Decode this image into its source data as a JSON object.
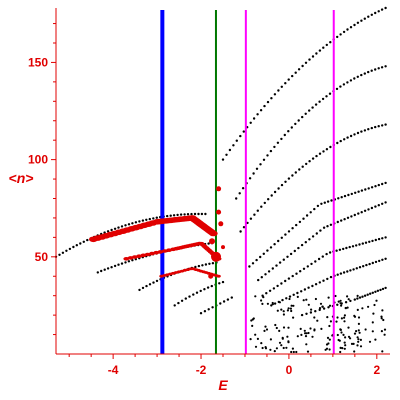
{
  "chart_data": {
    "type": "scatter",
    "title": "",
    "xlabel": "E",
    "ylabel": "<n>",
    "xlim": [
      -5.3,
      2.3
    ],
    "ylim": [
      0,
      178
    ],
    "xticks": [
      {
        "value": -4,
        "label": "-4"
      },
      {
        "value": -2,
        "label": "-2"
      },
      {
        "value": 0,
        "label": "0"
      },
      {
        "value": 2,
        "label": "2"
      }
    ],
    "yticks": [
      {
        "value": 50,
        "label": "50"
      },
      {
        "value": 100,
        "label": "100"
      },
      {
        "value": 150,
        "label": "150"
      }
    ],
    "grid": false,
    "colors": {
      "axis": "#e00000",
      "highlight": "#e00000",
      "points": "#000000",
      "line_blue": "#0000ff",
      "line_green": "#007700",
      "line_magenta": "#ff00ff"
    },
    "vertical_lines": [
      {
        "x": -2.88,
        "color": "#0000ff",
        "width": 4
      },
      {
        "x": -1.66,
        "color": "#007700",
        "width": 2
      },
      {
        "x": -0.98,
        "color": "#ff00ff",
        "width": 2
      },
      {
        "x": 1.02,
        "color": "#ff00ff",
        "width": 2
      }
    ],
    "black_branches": [
      {
        "x": [
          -5.3,
          -1.9
        ],
        "y": [
          50,
          72
        ],
        "curvature": -6
      },
      {
        "x": [
          -4.35,
          -1.75
        ],
        "y": [
          42,
          57
        ],
        "curvature": -2
      },
      {
        "x": [
          -3.4,
          -1.65
        ],
        "y": [
          33,
          47
        ],
        "curvature": -2
      },
      {
        "x": [
          -2.6,
          -1.5
        ],
        "y": [
          25,
          37
        ],
        "curvature": -1
      },
      {
        "x": [
          -2.0,
          -1.3
        ],
        "y": [
          21,
          29
        ],
        "curvature": 0
      },
      {
        "x": [
          -1.5,
          2.2
        ],
        "y": [
          100,
          178
        ],
        "curvature": -10
      },
      {
        "x": [
          -1.2,
          2.2
        ],
        "y": [
          80,
          148
        ],
        "curvature": -12
      },
      {
        "x": [
          -1.1,
          2.2
        ],
        "y": [
          63,
          118
        ],
        "curvature": -10
      },
      {
        "x": [
          -0.9,
          0.7,
          2.2
        ],
        "y": [
          45,
          77,
          88
        ],
        "curvature": 0
      },
      {
        "x": [
          -0.7,
          0.8,
          2.2
        ],
        "y": [
          38,
          65,
          78
        ],
        "curvature": 0
      },
      {
        "x": [
          -0.6,
          0.9,
          2.2
        ],
        "y": [
          30,
          52,
          60
        ],
        "curvature": 0
      },
      {
        "x": [
          -0.4,
          1.0,
          2.2
        ],
        "y": [
          25,
          40,
          49
        ],
        "curvature": 0
      },
      {
        "x": [
          0.3,
          1.5,
          2.2
        ],
        "y": [
          20,
          28,
          34
        ],
        "curvature": 0
      }
    ],
    "highlighted_branches": [
      {
        "x": [
          -4.45,
          -3.0,
          -2.2,
          -1.72
        ],
        "y": [
          59,
          68,
          70,
          62
        ],
        "size": 4
      },
      {
        "x": [
          -3.7,
          -2.6,
          -2.0,
          -1.6
        ],
        "y": [
          49,
          54,
          57,
          49
        ],
        "size": 2.6
      },
      {
        "x": [
          -2.9,
          -2.2,
          -1.6
        ],
        "y": [
          40,
          44,
          40
        ],
        "size": 2
      }
    ],
    "highlighted_points": [
      {
        "x": -1.66,
        "y": 50,
        "size": 5
      },
      {
        "x": -1.75,
        "y": 58,
        "size": 3
      },
      {
        "x": -1.6,
        "y": 73,
        "size": 2.5
      },
      {
        "x": -1.6,
        "y": 85,
        "size": 2.5
      },
      {
        "x": -1.55,
        "y": 67,
        "size": 2.5
      },
      {
        "x": -1.78,
        "y": 40,
        "size": 2.5
      },
      {
        "x": -1.5,
        "y": 55,
        "size": 2
      }
    ],
    "cloud": {
      "xlim": [
        -0.9,
        2.2
      ],
      "ylim": [
        1,
        30
      ],
      "count": 170
    }
  }
}
